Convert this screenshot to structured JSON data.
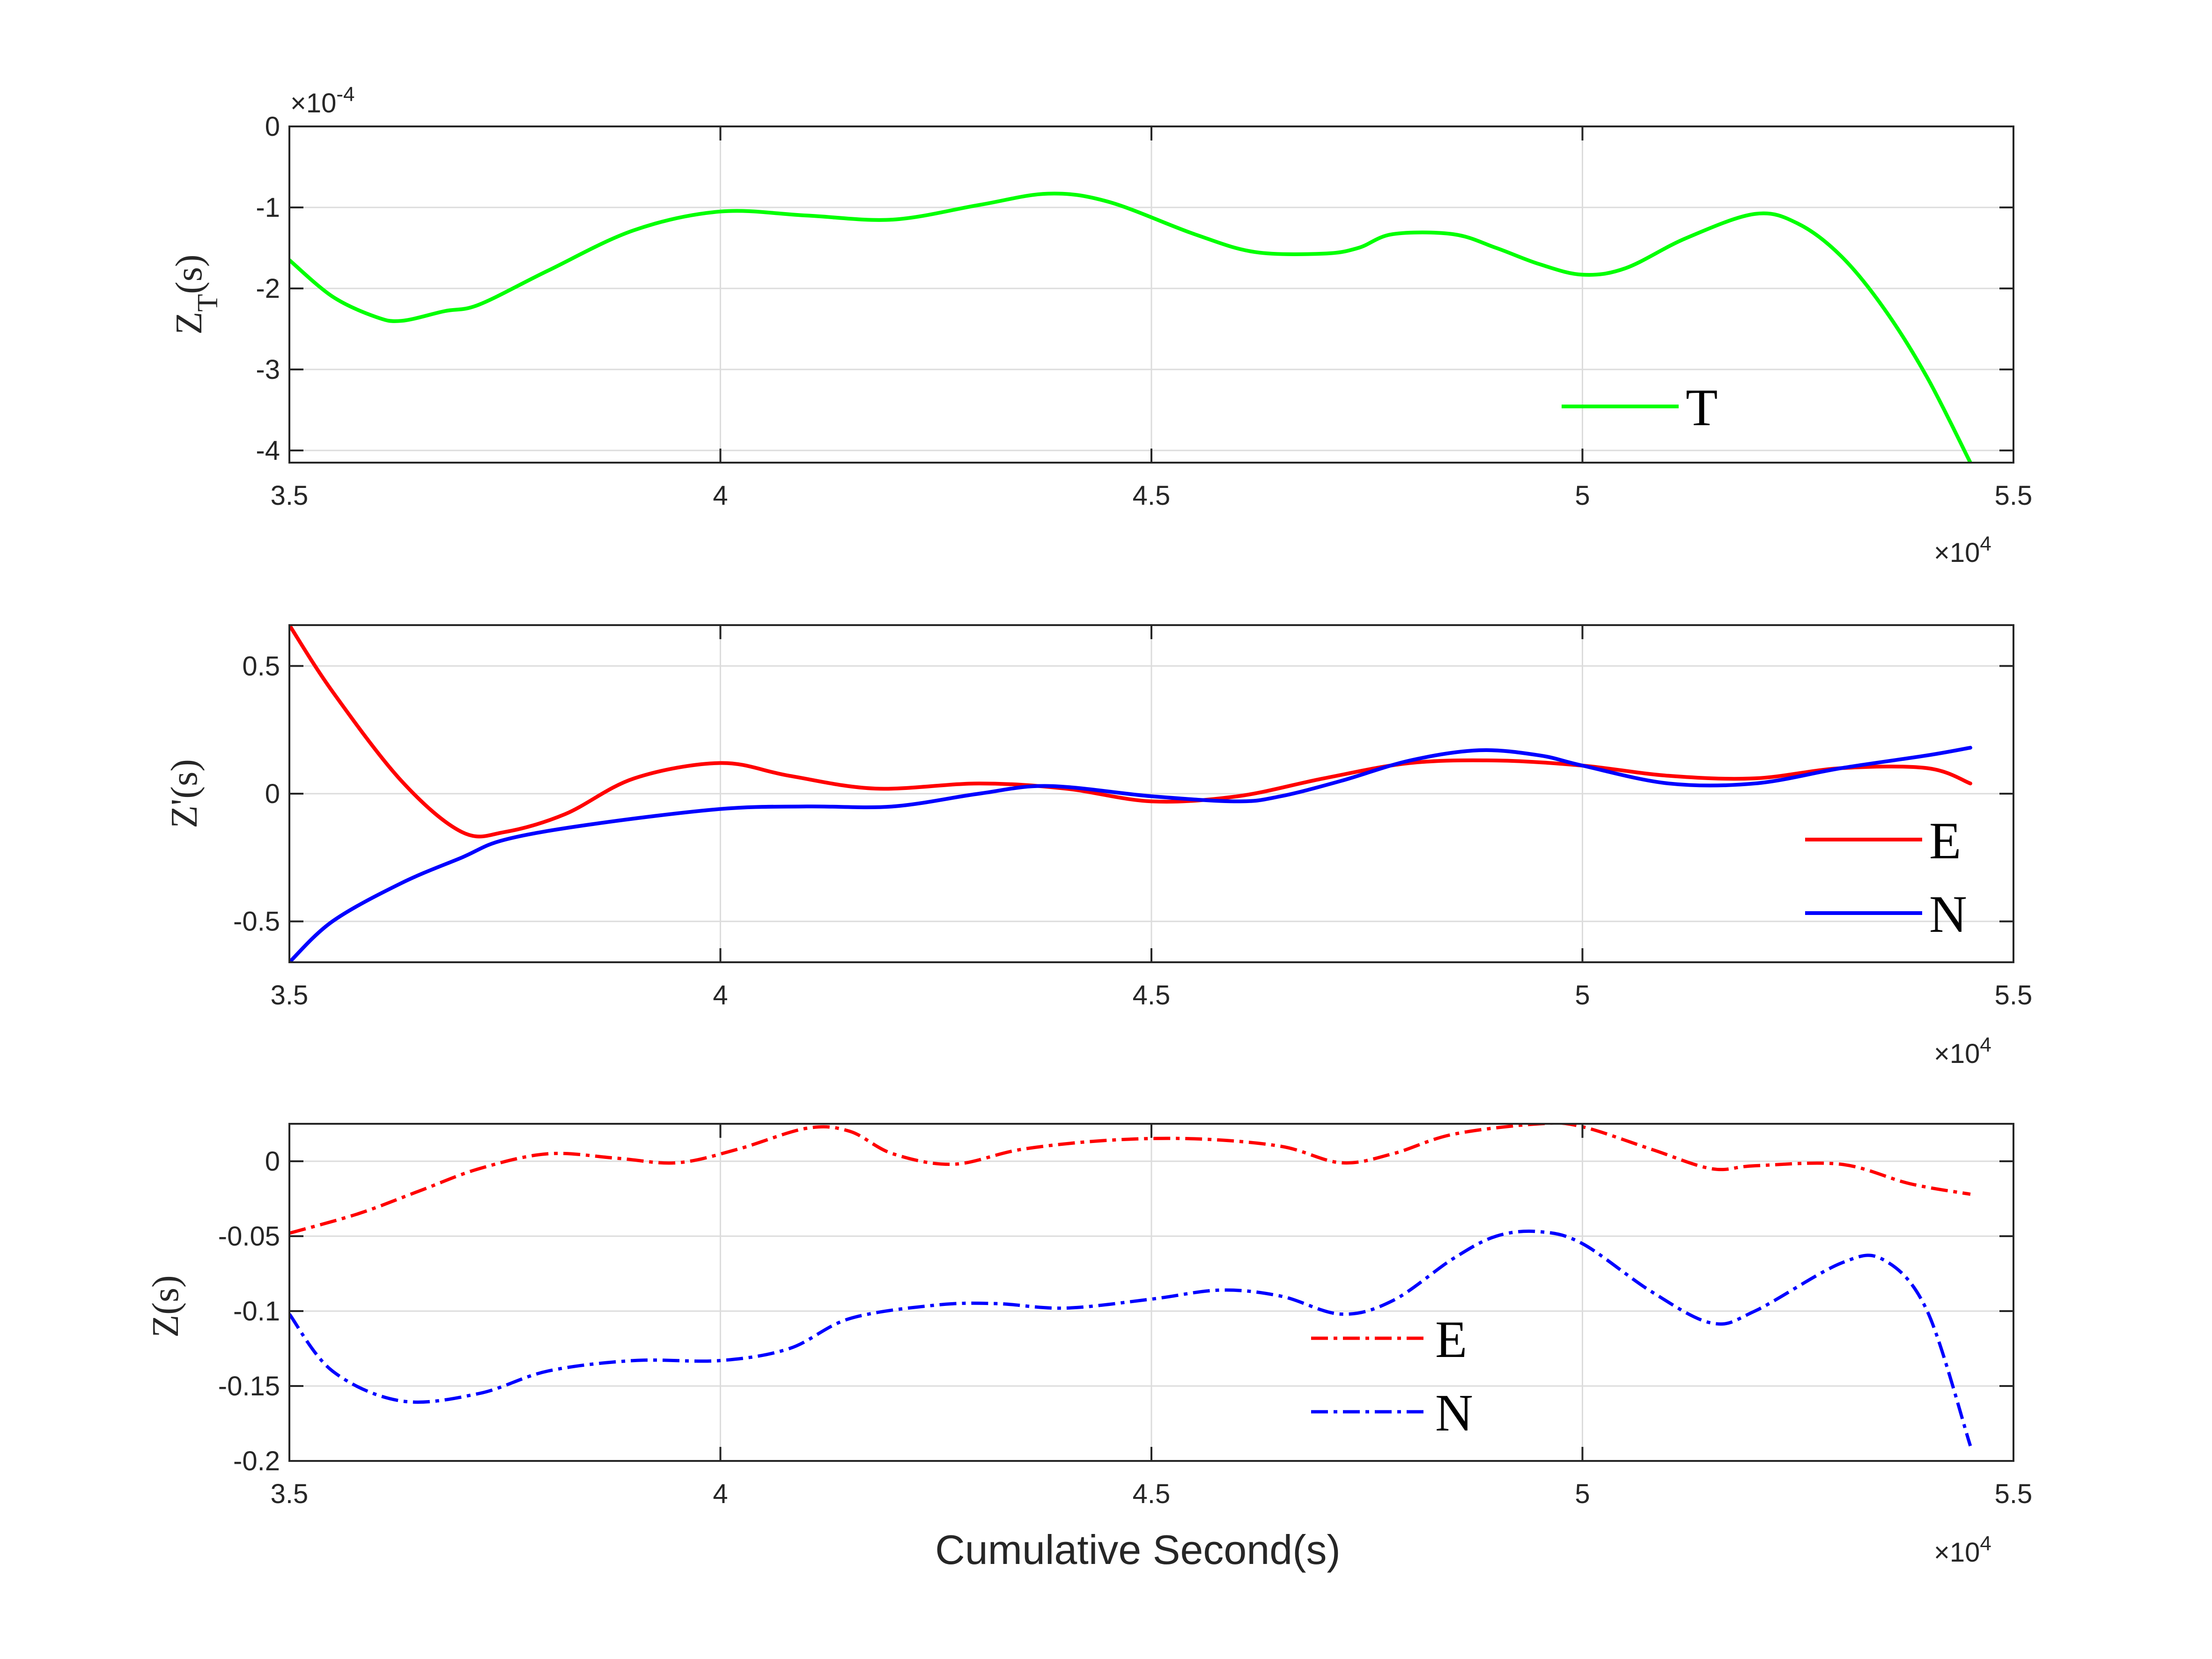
{
  "chart_data": [
    {
      "type": "line",
      "ylabel": "Z_T(s)",
      "ylabel_main": "Z",
      "ylabel_sub": "T",
      "ylabel_tail": "(s)",
      "y_exponent": "×10",
      "y_exponent_power": "-4",
      "x_exponent": "×10",
      "x_exponent_power": "4",
      "xlim": [
        3.5,
        5.5
      ],
      "ylim": [
        -4.15,
        0
      ],
      "xticks": [
        3.5,
        4,
        4.5,
        5,
        5.5
      ],
      "xtick_labels": [
        "3.5",
        "4",
        "4.5",
        "5",
        "5.5"
      ],
      "yticks": [
        0,
        -1,
        -2,
        -3,
        -4
      ],
      "ytick_labels": [
        "0",
        "-1",
        "-2",
        "-3",
        "-4"
      ],
      "grid": true,
      "legend_position": "lower-right",
      "series": [
        {
          "name": "T",
          "color": "#00ff00",
          "style": "solid",
          "x": [
            3.5,
            3.55,
            3.6,
            3.63,
            3.68,
            3.72,
            3.8,
            3.9,
            4.0,
            4.1,
            4.2,
            4.3,
            4.38,
            4.45,
            4.55,
            4.62,
            4.7,
            4.74,
            4.78,
            4.85,
            4.9,
            4.95,
            5.0,
            5.05,
            5.12,
            5.2,
            5.25,
            5.3,
            5.35,
            5.4,
            5.45
          ],
          "y": [
            -1.65,
            -2.1,
            -2.35,
            -2.4,
            -2.28,
            -2.2,
            -1.78,
            -1.28,
            -1.05,
            -1.1,
            -1.15,
            -0.97,
            -0.83,
            -0.93,
            -1.33,
            -1.55,
            -1.57,
            -1.5,
            -1.33,
            -1.33,
            -1.5,
            -1.7,
            -1.83,
            -1.75,
            -1.38,
            -1.08,
            -1.2,
            -1.6,
            -2.25,
            -3.1,
            -4.15
          ]
        }
      ]
    },
    {
      "type": "line",
      "ylabel": "Z'(s)",
      "x_exponent": "×10",
      "x_exponent_power": "4",
      "xlim": [
        3.5,
        5.5
      ],
      "ylim": [
        -0.66,
        0.66
      ],
      "xticks": [
        3.5,
        4,
        4.5,
        5,
        5.5
      ],
      "xtick_labels": [
        "3.5",
        "4",
        "4.5",
        "5",
        "5.5"
      ],
      "yticks": [
        0.5,
        0,
        -0.5
      ],
      "ytick_labels": [
        "0.5",
        "0",
        "-0.5"
      ],
      "grid": true,
      "legend_position": "lower-right",
      "series": [
        {
          "name": "E",
          "color": "#ff0000",
          "style": "solid",
          "x": [
            3.5,
            3.55,
            3.63,
            3.7,
            3.75,
            3.82,
            3.9,
            4.0,
            4.08,
            4.18,
            4.3,
            4.4,
            4.5,
            4.6,
            4.7,
            4.8,
            4.9,
            5.0,
            5.1,
            5.2,
            5.3,
            5.4,
            5.45
          ],
          "y": [
            0.66,
            0.4,
            0.05,
            -0.15,
            -0.15,
            -0.08,
            0.06,
            0.12,
            0.07,
            0.02,
            0.04,
            0.02,
            -0.03,
            -0.01,
            0.06,
            0.12,
            0.13,
            0.11,
            0.07,
            0.06,
            0.1,
            0.1,
            0.04
          ]
        },
        {
          "name": "N",
          "color": "#0000ff",
          "style": "solid",
          "x": [
            3.5,
            3.55,
            3.63,
            3.7,
            3.75,
            3.85,
            4.0,
            4.1,
            4.2,
            4.3,
            4.38,
            4.5,
            4.6,
            4.65,
            4.72,
            4.8,
            4.88,
            4.95,
            5.0,
            5.1,
            5.2,
            5.3,
            5.4,
            5.45
          ],
          "y": [
            -0.66,
            -0.5,
            -0.35,
            -0.25,
            -0.18,
            -0.12,
            -0.06,
            -0.05,
            -0.05,
            0.0,
            0.03,
            -0.01,
            -0.03,
            -0.01,
            0.05,
            0.13,
            0.17,
            0.15,
            0.11,
            0.04,
            0.04,
            0.1,
            0.15,
            0.18
          ]
        }
      ]
    },
    {
      "type": "line",
      "ylabel": "Z(s)",
      "xlabel": "Cumulative Second(s)",
      "x_exponent": "×10",
      "x_exponent_power": "4",
      "xlim": [
        3.5,
        5.5
      ],
      "ylim": [
        -0.2,
        0.025
      ],
      "xticks": [
        3.5,
        4,
        4.5,
        5,
        5.5
      ],
      "xtick_labels": [
        "3.5",
        "4",
        "4.5",
        "5",
        "5.5"
      ],
      "yticks": [
        0,
        -0.05,
        -0.1,
        -0.15,
        -0.2
      ],
      "ytick_labels": [
        "0",
        "-0.05",
        "-0.1",
        "-0.15",
        "-0.2"
      ],
      "grid": true,
      "legend_position": "bottom-center",
      "series": [
        {
          "name": "E",
          "color": "#ff0000",
          "style": "dash-dot",
          "x": [
            3.5,
            3.58,
            3.65,
            3.72,
            3.8,
            3.88,
            3.95,
            4.02,
            4.1,
            4.15,
            4.2,
            4.27,
            4.35,
            4.45,
            4.55,
            4.65,
            4.72,
            4.78,
            4.85,
            4.95,
            5.0,
            5.08,
            5.15,
            5.2,
            5.3,
            5.38,
            5.45
          ],
          "y": [
            -0.048,
            -0.035,
            -0.02,
            -0.005,
            0.005,
            0.002,
            -0.001,
            0.008,
            0.022,
            0.02,
            0.005,
            -0.002,
            0.008,
            0.014,
            0.015,
            0.01,
            -0.001,
            0.005,
            0.018,
            0.025,
            0.023,
            0.008,
            -0.005,
            -0.003,
            -0.002,
            -0.015,
            -0.022
          ]
        },
        {
          "name": "N",
          "color": "#0000ff",
          "style": "dash-dot",
          "x": [
            3.5,
            3.55,
            3.63,
            3.72,
            3.8,
            3.9,
            4.0,
            4.08,
            4.15,
            4.25,
            4.32,
            4.4,
            4.5,
            4.58,
            4.65,
            4.72,
            4.78,
            4.85,
            4.9,
            4.95,
            5.0,
            5.08,
            5.15,
            5.2,
            5.3,
            5.35,
            5.4,
            5.45
          ],
          "y": [
            -0.102,
            -0.14,
            -0.16,
            -0.155,
            -0.14,
            -0.133,
            -0.133,
            -0.125,
            -0.105,
            -0.096,
            -0.095,
            -0.098,
            -0.092,
            -0.086,
            -0.09,
            -0.102,
            -0.093,
            -0.065,
            -0.05,
            -0.047,
            -0.055,
            -0.087,
            -0.108,
            -0.1,
            -0.068,
            -0.066,
            -0.1,
            -0.19
          ]
        }
      ]
    }
  ]
}
